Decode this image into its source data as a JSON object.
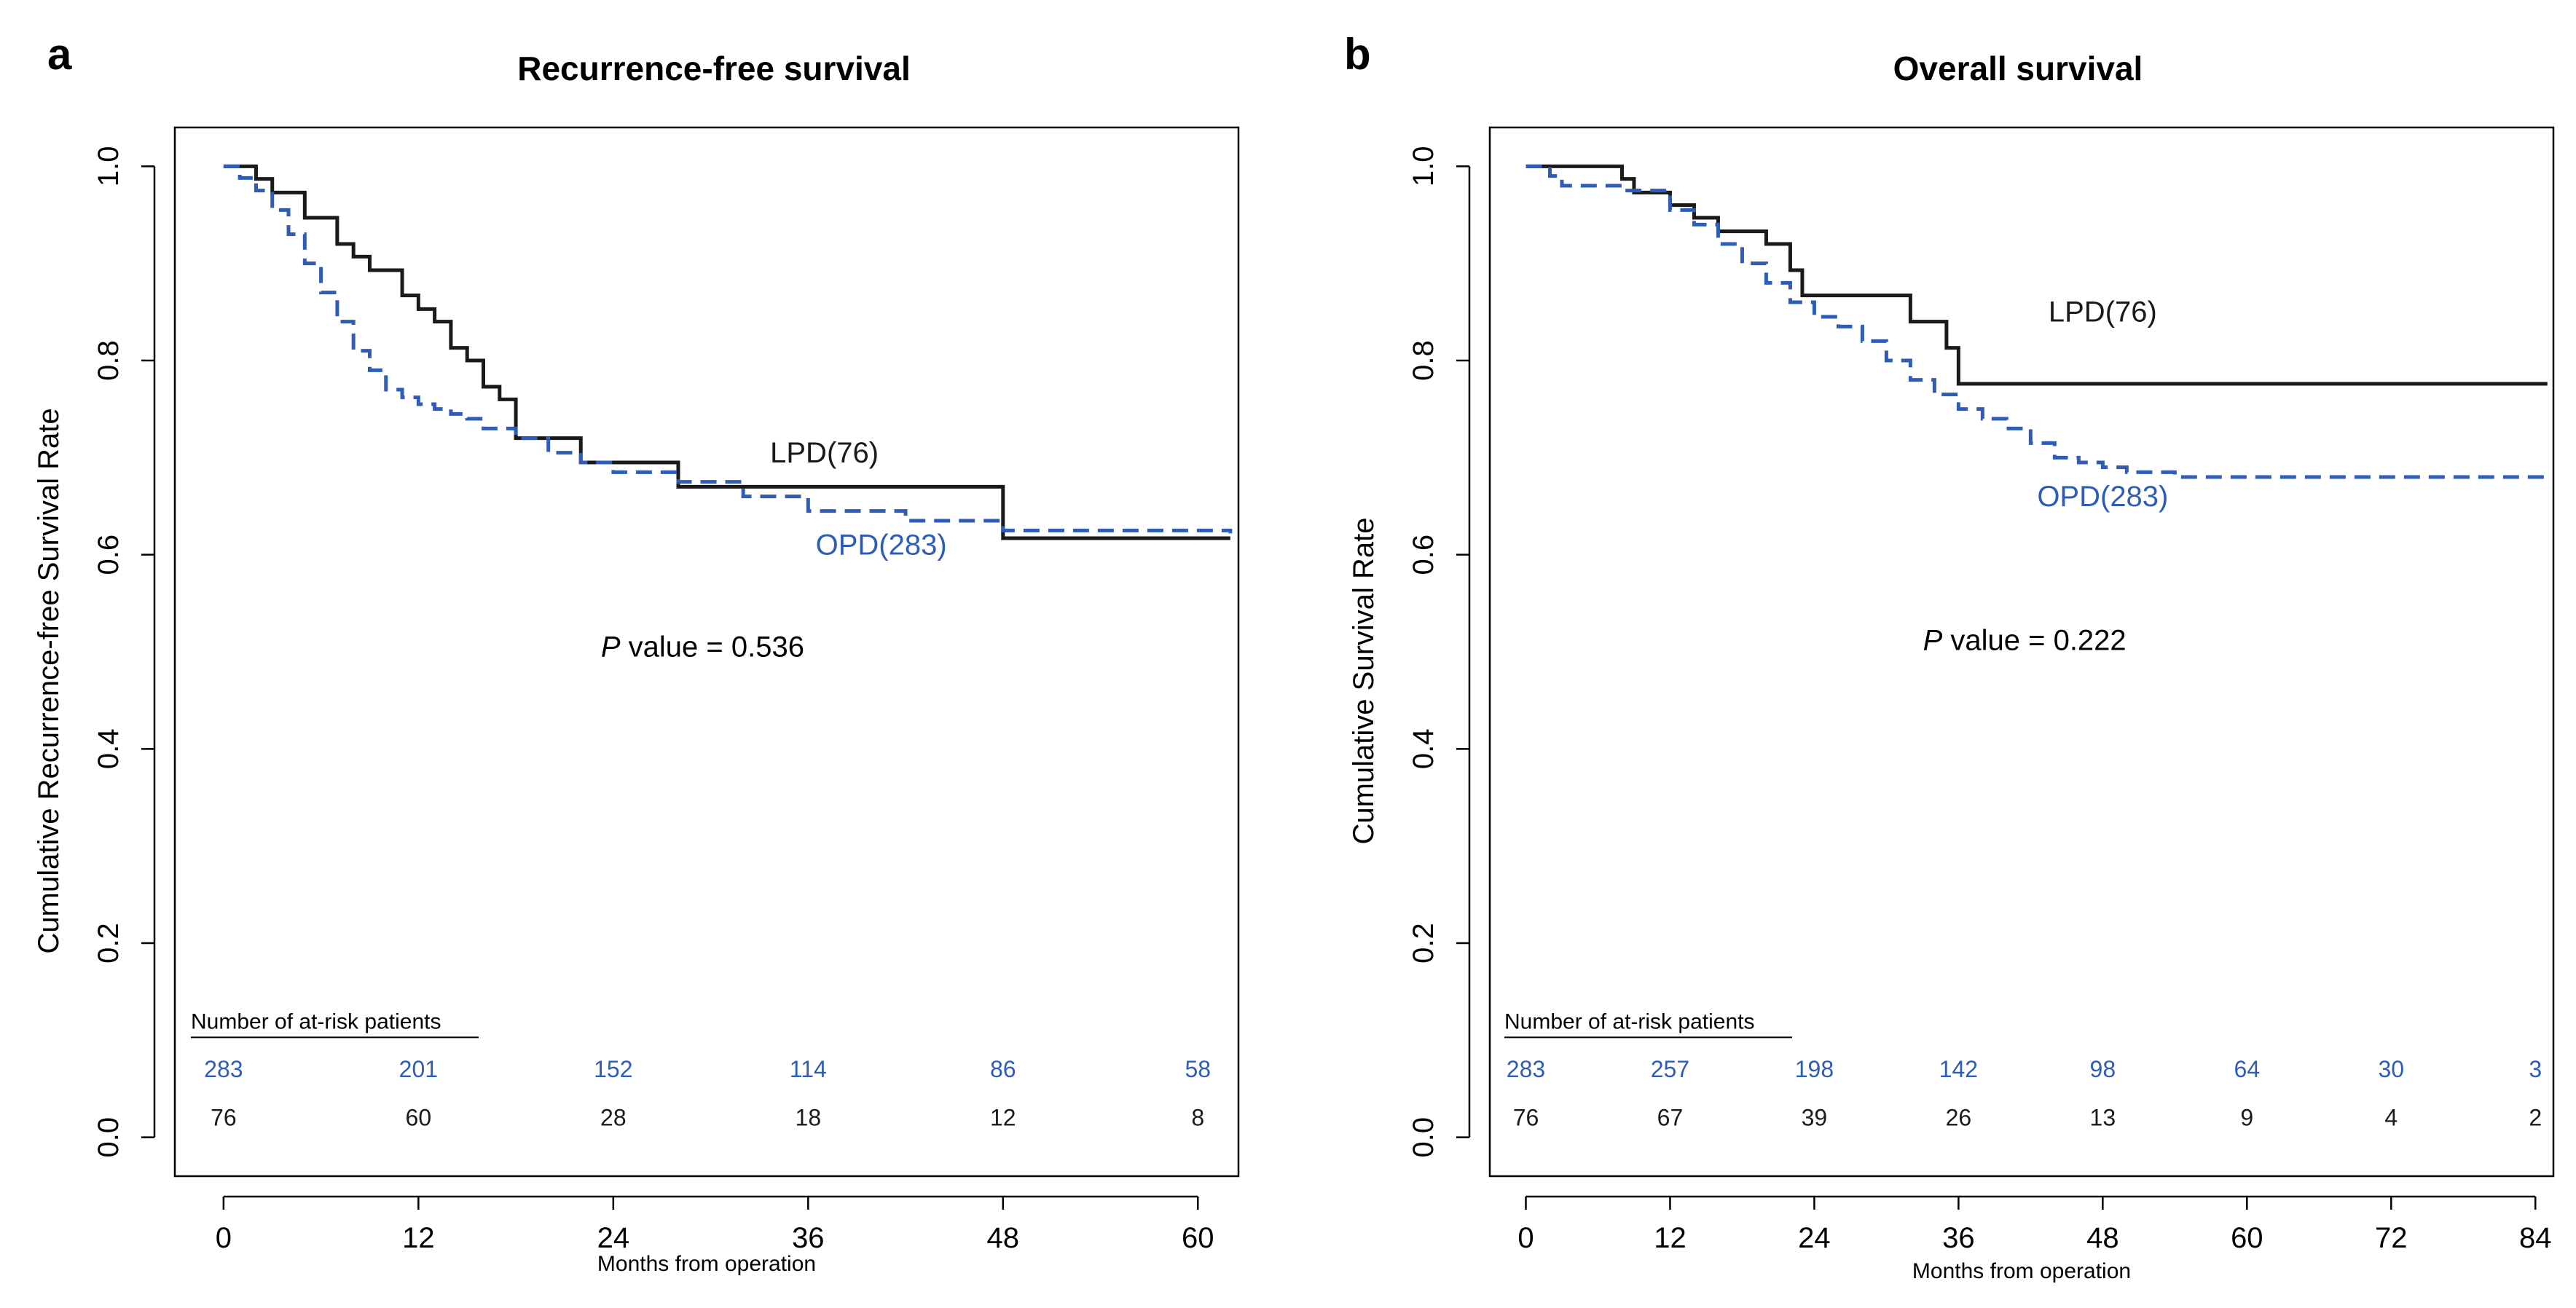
{
  "colors": {
    "lpd": "#1a1a1a",
    "opd": "#2f5db5",
    "axis": "#000000"
  },
  "chart_data": [
    {
      "panel_label": "a",
      "type": "line",
      "title": "Recurrence-free survival",
      "xlabel": "Months from operation",
      "ylabel": "Cumulative Recurrence-free Survival Rate",
      "xlim": [
        -3,
        62.5
      ],
      "ylim": [
        -0.04,
        1.04
      ],
      "xticks": [
        0,
        12,
        24,
        36,
        48,
        60
      ],
      "xtick_labels": [
        "0",
        "12",
        "24",
        "36",
        "48",
        "60"
      ],
      "yticks": [
        0.0,
        0.2,
        0.4,
        0.6,
        0.8,
        1.0
      ],
      "ytick_labels": [
        "0.0",
        "0.2",
        "0.4",
        "0.6",
        "0.8",
        "1.0"
      ],
      "legend_placement": "inline labels near curves",
      "series": [
        {
          "name": "LPD(76)",
          "label_pos": [
            37,
            0.695
          ],
          "style": "solid",
          "x": [
            0,
            2,
            3,
            5,
            7,
            8,
            9,
            11,
            12,
            13,
            14,
            15,
            16,
            17,
            18,
            19,
            22,
            28,
            48,
            62
          ],
          "y": [
            1.0,
            0.987,
            0.973,
            0.947,
            0.92,
            0.907,
            0.893,
            0.867,
            0.853,
            0.84,
            0.813,
            0.8,
            0.773,
            0.76,
            0.72,
            0.72,
            0.695,
            0.67,
            0.617,
            0.617
          ]
        },
        {
          "name": "OPD(283)",
          "label_pos": [
            40.5,
            0.6
          ],
          "style": "dashed",
          "x": [
            0,
            1,
            2,
            3,
            4,
            5,
            6,
            7,
            8,
            9,
            10,
            11,
            12,
            13,
            14,
            15,
            16,
            18,
            20,
            22,
            24,
            28,
            32,
            36,
            42,
            48,
            62
          ],
          "y": [
            1.0,
            0.988,
            0.975,
            0.955,
            0.93,
            0.9,
            0.87,
            0.84,
            0.81,
            0.79,
            0.77,
            0.762,
            0.755,
            0.75,
            0.745,
            0.74,
            0.73,
            0.72,
            0.705,
            0.695,
            0.685,
            0.675,
            0.66,
            0.645,
            0.635,
            0.625,
            0.622
          ]
        }
      ],
      "annotations": [
        {
          "italic": "P",
          "text": " value = 0.536",
          "pos": [
            29.5,
            0.495
          ]
        }
      ],
      "risk_table": {
        "title": "Number of at-risk patients",
        "rows": [
          {
            "group": "OPD",
            "values": [
              "283",
              "201",
              "152",
              "114",
              "86",
              "58"
            ]
          },
          {
            "group": "LPD",
            "values": [
              "76",
              "60",
              "28",
              "18",
              "12",
              "8"
            ]
          }
        ]
      }
    },
    {
      "panel_label": "b",
      "type": "line",
      "title": "Overall survival",
      "xlabel": "Months from operation",
      "ylabel": "Cumulative Survival Rate",
      "xlim": [
        -3,
        85.5
      ],
      "ylim": [
        -0.04,
        1.04
      ],
      "xticks": [
        0,
        12,
        24,
        36,
        48,
        60,
        72,
        84
      ],
      "xtick_labels": [
        "0",
        "12",
        "24",
        "36",
        "48",
        "60",
        "72",
        "84"
      ],
      "yticks": [
        0.0,
        0.2,
        0.4,
        0.6,
        0.8,
        1.0
      ],
      "ytick_labels": [
        "0.0",
        "0.2",
        "0.4",
        "0.6",
        "0.8",
        "1.0"
      ],
      "legend_placement": "inline labels near curves",
      "series": [
        {
          "name": "LPD(76)",
          "label_pos": [
            48,
            0.84
          ],
          "style": "solid",
          "x": [
            0,
            8,
            9,
            12,
            14,
            16,
            20,
            22,
            23,
            32,
            35,
            36,
            85
          ],
          "y": [
            1.0,
            0.987,
            0.973,
            0.96,
            0.947,
            0.933,
            0.92,
            0.893,
            0.867,
            0.84,
            0.813,
            0.776,
            0.776
          ]
        },
        {
          "name": "OPD(283)",
          "label_pos": [
            48,
            0.65
          ],
          "style": "dashed",
          "x": [
            0,
            2,
            3,
            8,
            12,
            14,
            16,
            18,
            20,
            22,
            24,
            26,
            28,
            30,
            32,
            34,
            36,
            38,
            40,
            42,
            44,
            46,
            48,
            50,
            54,
            85
          ],
          "y": [
            1.0,
            0.99,
            0.98,
            0.975,
            0.955,
            0.94,
            0.92,
            0.9,
            0.88,
            0.86,
            0.845,
            0.835,
            0.82,
            0.8,
            0.78,
            0.765,
            0.75,
            0.74,
            0.73,
            0.715,
            0.7,
            0.695,
            0.69,
            0.685,
            0.68,
            0.68
          ]
        }
      ],
      "annotations": [
        {
          "italic": "P",
          "text": " value = 0.222",
          "pos": [
            41.5,
            0.502
          ]
        }
      ],
      "risk_table": {
        "title": "Number of at-risk patients",
        "rows": [
          {
            "group": "OPD",
            "values": [
              "283",
              "257",
              "198",
              "142",
              "98",
              "64",
              "30",
              "3"
            ]
          },
          {
            "group": "LPD",
            "values": [
              "76",
              "67",
              "39",
              "26",
              "13",
              "9",
              "4",
              "2"
            ]
          }
        ]
      }
    }
  ]
}
